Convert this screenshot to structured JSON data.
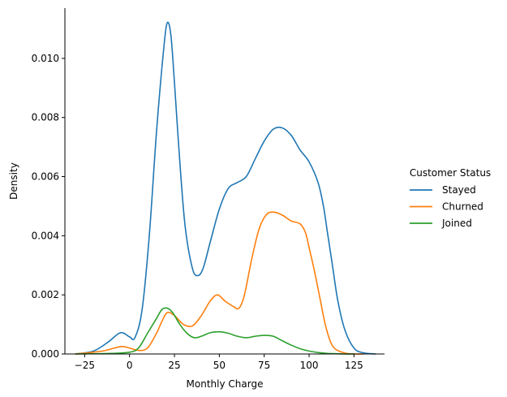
{
  "chart_data": {
    "type": "line",
    "title": "",
    "xlabel": "Monthly Charge",
    "ylabel": "Density",
    "xlim": [
      -36,
      142
    ],
    "ylim": [
      0,
      0.0117
    ],
    "x_ticks": [
      -25,
      0,
      25,
      50,
      75,
      100,
      125
    ],
    "x_tick_labels": [
      "−25",
      "0",
      "25",
      "50",
      "75",
      "100",
      "125"
    ],
    "y_ticks": [
      0,
      0.002,
      0.004,
      0.006,
      0.008,
      0.01
    ],
    "y_tick_labels": [
      "0.000",
      "0.002",
      "0.004",
      "0.006",
      "0.008",
      "0.010"
    ],
    "grid": false,
    "legend": {
      "title": "Customer Status",
      "placement": "right-outside"
    },
    "series": [
      {
        "name": "Stayed",
        "color": "#1f77b4",
        "x": [
          -30,
          -20,
          -12,
          -5,
          0,
          3,
          7,
          11,
          15,
          19,
          21,
          23,
          25,
          28,
          31,
          35,
          38,
          41,
          45,
          50,
          55,
          60,
          65,
          70,
          75,
          80,
          85,
          90,
          95,
          100,
          105,
          108,
          110,
          113,
          116,
          120,
          125,
          130,
          137
        ],
        "y": [
          0.0,
          0.0001,
          0.0004,
          0.00072,
          0.00058,
          0.00055,
          0.0015,
          0.004,
          0.0075,
          0.0103,
          0.0112,
          0.0108,
          0.0092,
          0.0065,
          0.0043,
          0.0029,
          0.00265,
          0.0029,
          0.0038,
          0.0049,
          0.0056,
          0.0058,
          0.006,
          0.0066,
          0.0072,
          0.0076,
          0.00765,
          0.0074,
          0.0069,
          0.0065,
          0.0058,
          0.005,
          0.0042,
          0.003,
          0.0018,
          0.0008,
          0.0002,
          4e-05,
          0.0
        ]
      },
      {
        "name": "Churned",
        "color": "#ff7f0e",
        "x": [
          -30,
          -15,
          -5,
          0,
          5,
          10,
          15,
          18,
          21,
          25,
          30,
          35,
          40,
          45,
          49,
          53,
          58,
          61,
          64,
          68,
          72,
          76,
          80,
          85,
          90,
          95,
          98,
          100,
          103,
          106,
          109,
          112,
          115,
          120,
          125,
          130
        ],
        "y": [
          0.0,
          0.0001,
          0.00025,
          0.0002,
          0.00012,
          0.0002,
          0.0007,
          0.0011,
          0.0014,
          0.0013,
          0.001,
          0.00095,
          0.0013,
          0.0018,
          0.002,
          0.0018,
          0.0016,
          0.00155,
          0.002,
          0.0032,
          0.0042,
          0.0047,
          0.0048,
          0.0047,
          0.0045,
          0.0044,
          0.0041,
          0.0036,
          0.0028,
          0.0019,
          0.001,
          0.0004,
          0.00015,
          3e-05,
          0.0,
          0.0
        ]
      },
      {
        "name": "Joined",
        "color": "#2ca02c",
        "x": [
          -30,
          -10,
          0,
          5,
          10,
          15,
          18,
          21,
          24,
          28,
          32,
          36,
          40,
          45,
          50,
          55,
          60,
          65,
          70,
          75,
          80,
          85,
          90,
          95,
          100,
          105,
          110,
          115,
          120,
          125
        ],
        "y": [
          0.0,
          2e-05,
          6e-05,
          0.0002,
          0.0007,
          0.0012,
          0.0015,
          0.00155,
          0.0014,
          0.001,
          0.0007,
          0.00055,
          0.0006,
          0.00072,
          0.00075,
          0.0007,
          0.0006,
          0.00055,
          0.0006,
          0.00063,
          0.0006,
          0.00045,
          0.0003,
          0.00018,
          0.0001,
          5e-05,
          2e-05,
          1e-05,
          0.0,
          0.0
        ]
      }
    ]
  }
}
